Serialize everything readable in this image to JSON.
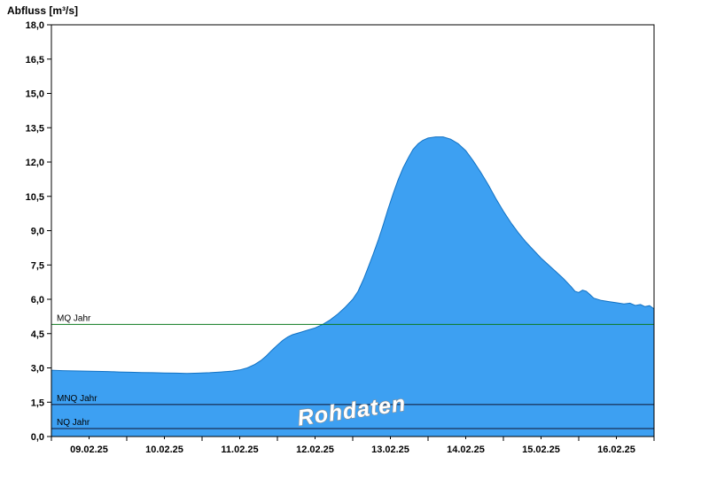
{
  "window": {
    "title": "Abfluss [m³/s]"
  },
  "chart_data": {
    "type": "area",
    "title": "Abfluss [m³/s]",
    "ylabel": "Abfluss [m³/s]",
    "xlabel": "",
    "ylim": [
      0,
      18
    ],
    "ytick_step": 1.5,
    "ytick_labels": [
      "0,0",
      "1,5",
      "3,0",
      "4,5",
      "6,0",
      "7,5",
      "9,0",
      "10,5",
      "12,0",
      "13,5",
      "15,0",
      "16,5",
      "18,0"
    ],
    "xlim_days": [
      0,
      8
    ],
    "xtick_labels": [
      "09.02.25",
      "10.02.25",
      "11.02.25",
      "12.02.25",
      "13.02.25",
      "14.02.25",
      "15.02.25",
      "16.02.25"
    ],
    "grid": false,
    "legend": "none",
    "watermark": "Rohdaten",
    "series": [
      {
        "name": "Rohdaten",
        "unit": "m³/s",
        "points": [
          [
            0.0,
            2.9
          ],
          [
            0.15,
            2.88
          ],
          [
            0.3,
            2.87
          ],
          [
            0.45,
            2.86
          ],
          [
            0.6,
            2.85
          ],
          [
            0.75,
            2.84
          ],
          [
            0.9,
            2.82
          ],
          [
            1.05,
            2.81
          ],
          [
            1.2,
            2.8
          ],
          [
            1.35,
            2.79
          ],
          [
            1.5,
            2.78
          ],
          [
            1.65,
            2.77
          ],
          [
            1.8,
            2.76
          ],
          [
            1.95,
            2.77
          ],
          [
            2.1,
            2.79
          ],
          [
            2.25,
            2.82
          ],
          [
            2.4,
            2.86
          ],
          [
            2.5,
            2.91
          ],
          [
            2.6,
            3.0
          ],
          [
            2.7,
            3.15
          ],
          [
            2.78,
            3.32
          ],
          [
            2.85,
            3.52
          ],
          [
            2.92,
            3.75
          ],
          [
            3.0,
            4.0
          ],
          [
            3.07,
            4.2
          ],
          [
            3.14,
            4.36
          ],
          [
            3.2,
            4.45
          ],
          [
            3.3,
            4.55
          ],
          [
            3.4,
            4.65
          ],
          [
            3.5,
            4.75
          ],
          [
            3.6,
            4.9
          ],
          [
            3.7,
            5.1
          ],
          [
            3.8,
            5.35
          ],
          [
            3.9,
            5.65
          ],
          [
            4.0,
            6.0
          ],
          [
            4.07,
            6.35
          ],
          [
            4.14,
            6.85
          ],
          [
            4.2,
            7.35
          ],
          [
            4.27,
            7.95
          ],
          [
            4.34,
            8.6
          ],
          [
            4.4,
            9.2
          ],
          [
            4.47,
            9.95
          ],
          [
            4.54,
            10.65
          ],
          [
            4.6,
            11.2
          ],
          [
            4.67,
            11.75
          ],
          [
            4.74,
            12.2
          ],
          [
            4.8,
            12.55
          ],
          [
            4.87,
            12.8
          ],
          [
            4.93,
            12.95
          ],
          [
            5.0,
            13.05
          ],
          [
            5.1,
            13.1
          ],
          [
            5.2,
            13.1
          ],
          [
            5.3,
            13.0
          ],
          [
            5.4,
            12.8
          ],
          [
            5.5,
            12.5
          ],
          [
            5.6,
            12.05
          ],
          [
            5.7,
            11.55
          ],
          [
            5.8,
            11.0
          ],
          [
            5.9,
            10.4
          ],
          [
            6.0,
            9.85
          ],
          [
            6.1,
            9.35
          ],
          [
            6.2,
            8.9
          ],
          [
            6.3,
            8.5
          ],
          [
            6.4,
            8.15
          ],
          [
            6.5,
            7.8
          ],
          [
            6.6,
            7.5
          ],
          [
            6.7,
            7.2
          ],
          [
            6.8,
            6.9
          ],
          [
            6.9,
            6.55
          ],
          [
            6.95,
            6.35
          ],
          [
            7.0,
            6.3
          ],
          [
            7.05,
            6.4
          ],
          [
            7.1,
            6.35
          ],
          [
            7.15,
            6.2
          ],
          [
            7.2,
            6.05
          ],
          [
            7.3,
            5.95
          ],
          [
            7.4,
            5.9
          ],
          [
            7.5,
            5.85
          ],
          [
            7.6,
            5.8
          ],
          [
            7.68,
            5.83
          ],
          [
            7.75,
            5.73
          ],
          [
            7.82,
            5.77
          ],
          [
            7.88,
            5.68
          ],
          [
            7.94,
            5.72
          ],
          [
            8.0,
            5.58
          ]
        ]
      }
    ],
    "reference_lines": [
      {
        "label": "MQ Jahr",
        "value": 4.9,
        "color": "#0c7a1e"
      },
      {
        "label": "MNQ Jahr",
        "value": 1.4,
        "color": "#101430"
      },
      {
        "label": "NQ Jahr",
        "value": 0.35,
        "color": "#101430"
      }
    ],
    "colors": {
      "area_fill": "#3da0f2",
      "area_stroke": "#1272c4",
      "frame": "#000000",
      "tick": "#000000",
      "background": "#ffffff"
    }
  }
}
